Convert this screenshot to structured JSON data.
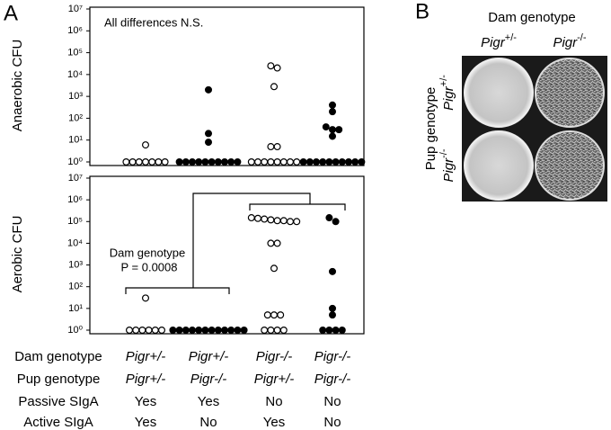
{
  "panel_labels": {
    "a": "A",
    "b": "B"
  },
  "chart_data": [
    {
      "type": "dotplot",
      "y_label": "Anaerobic CFU",
      "annotations": [
        "All differences N.S."
      ],
      "log_y": true,
      "ylim": [
        1,
        10000000
      ],
      "yticks": [
        {
          "value": 1,
          "label": "10⁰"
        },
        {
          "value": 10,
          "label": "10¹"
        },
        {
          "value": 100,
          "label": "10²"
        },
        {
          "value": 1000,
          "label": "10³"
        },
        {
          "value": 10000,
          "label": "10⁴"
        },
        {
          "value": 100000,
          "label": "10⁵"
        },
        {
          "value": 1000000,
          "label": "10⁶"
        },
        {
          "value": 10000000,
          "label": "10⁷"
        }
      ],
      "groups": [
        {
          "marker": "open",
          "color": "#000000",
          "values": [
            6,
            1,
            1,
            1,
            1,
            1,
            1,
            1
          ]
        },
        {
          "marker": "filled",
          "color": "#000000",
          "values": [
            2000,
            20,
            8,
            1,
            1,
            1,
            1,
            1,
            1,
            1,
            1,
            1,
            1
          ]
        },
        {
          "marker": "open",
          "color": "#000000",
          "values": [
            25000,
            20000,
            2800,
            5,
            5,
            1,
            1,
            1,
            1,
            1,
            1,
            1,
            1
          ]
        },
        {
          "marker": "filled",
          "color": "#000000",
          "values": [
            400,
            200,
            40,
            30,
            30,
            15,
            1,
            1,
            1,
            1,
            1,
            1,
            1,
            1,
            1,
            1
          ]
        }
      ]
    },
    {
      "type": "dotplot",
      "y_label": "Aerobic CFU",
      "annotations": [
        "Dam genotype",
        "P = 0.0008"
      ],
      "log_y": true,
      "ylim": [
        1,
        10000000
      ],
      "yticks": [
        {
          "value": 1,
          "label": "10⁰"
        },
        {
          "value": 10,
          "label": "10¹"
        },
        {
          "value": 100,
          "label": "10²"
        },
        {
          "value": 1000,
          "label": "10³"
        },
        {
          "value": 10000,
          "label": "10⁴"
        },
        {
          "value": 100000,
          "label": "10⁵"
        },
        {
          "value": 1000000,
          "label": "10⁶"
        },
        {
          "value": 10000000,
          "label": "10⁷"
        }
      ],
      "groups": [
        {
          "marker": "open",
          "color": "#000000",
          "values": [
            30,
            1,
            1,
            1,
            1,
            1,
            1
          ]
        },
        {
          "marker": "filled",
          "color": "#000000",
          "values": [
            1,
            1,
            1,
            1,
            1,
            1,
            1,
            1,
            1,
            1,
            1,
            1
          ]
        },
        {
          "marker": "open",
          "color": "#000000",
          "values": [
            150000,
            140000,
            130000,
            120000,
            110000,
            110000,
            100000,
            100000,
            10000,
            10000,
            700,
            5,
            5,
            5,
            1,
            1,
            1,
            1
          ]
        },
        {
          "marker": "filled",
          "color": "#000000",
          "values": [
            150000,
            100000,
            500,
            10,
            5,
            1,
            1,
            1,
            1
          ]
        }
      ]
    }
  ],
  "table": {
    "rows": [
      {
        "label": "Dam genotype",
        "cells": [
          "Pigr+/-",
          "Pigr+/-",
          "Pigr-/-",
          "Pigr-/-"
        ]
      },
      {
        "label": "Pup genotype",
        "cells": [
          "Pigr+/-",
          "Pigr-/-",
          "Pigr+/-",
          "Pigr-/-"
        ]
      },
      {
        "label": "Passive SIgA",
        "cells": [
          "Yes",
          "Yes",
          "No",
          "No"
        ]
      },
      {
        "label": "Active SIgA",
        "cells": [
          "Yes",
          "No",
          "Yes",
          "No"
        ]
      }
    ]
  },
  "panel_b": {
    "column_title": "Dam genotype",
    "columns": [
      {
        "gene": "Pigr",
        "allele": "+/-"
      },
      {
        "gene": "Pigr",
        "allele": "-/-"
      }
    ],
    "row_title": "Pup genotype",
    "rows": [
      {
        "gene": "Pigr",
        "allele": "+/-"
      },
      {
        "gene": "Pigr",
        "allele": "-/-"
      }
    ]
  }
}
